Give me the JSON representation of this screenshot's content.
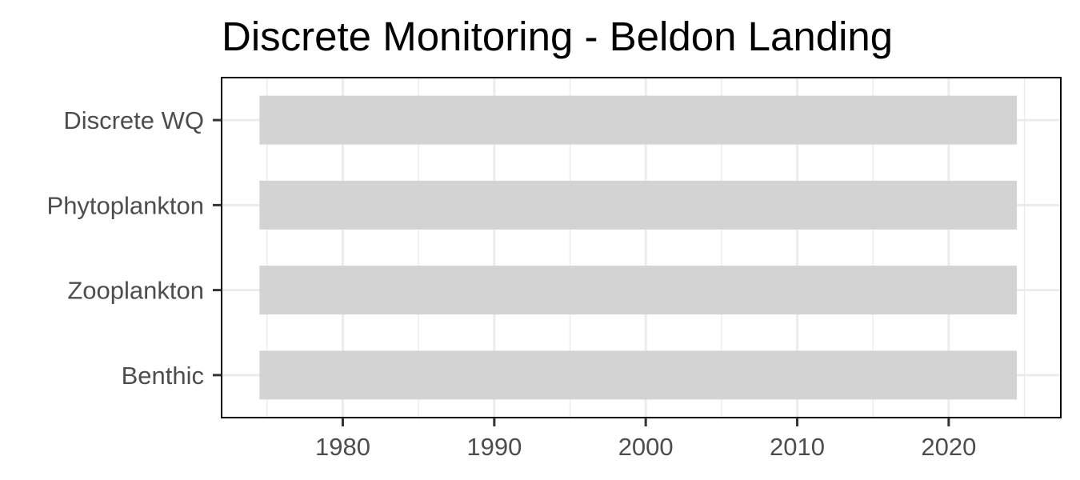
{
  "chart_data": {
    "type": "bar",
    "orientation": "horizontal",
    "title": "Discrete Monitoring - Beldon Landing",
    "xlabel": "",
    "ylabel": "",
    "categories": [
      "Discrete WQ",
      "Phytoplankton",
      "Zooplankton",
      "Benthic"
    ],
    "ranges": [
      {
        "category": "Discrete WQ",
        "start": 1974.5,
        "end": 2024.5
      },
      {
        "category": "Phytoplankton",
        "start": 1974.5,
        "end": 2024.5
      },
      {
        "category": "Zooplankton",
        "start": 1974.5,
        "end": 2024.5
      },
      {
        "category": "Benthic",
        "start": 1974.5,
        "end": 2024.5
      }
    ],
    "xlim": [
      1972,
      2027.4
    ],
    "x_ticks": [
      "1980",
      "1990",
      "2000",
      "2010",
      "2020"
    ],
    "grid": true,
    "legend": "none",
    "colors": {
      "bar": "#d3d3d3",
      "grid": "#ebebeb",
      "frame": "#000000",
      "tick_text": "#4d4d4d",
      "title_text": "#000000"
    }
  }
}
